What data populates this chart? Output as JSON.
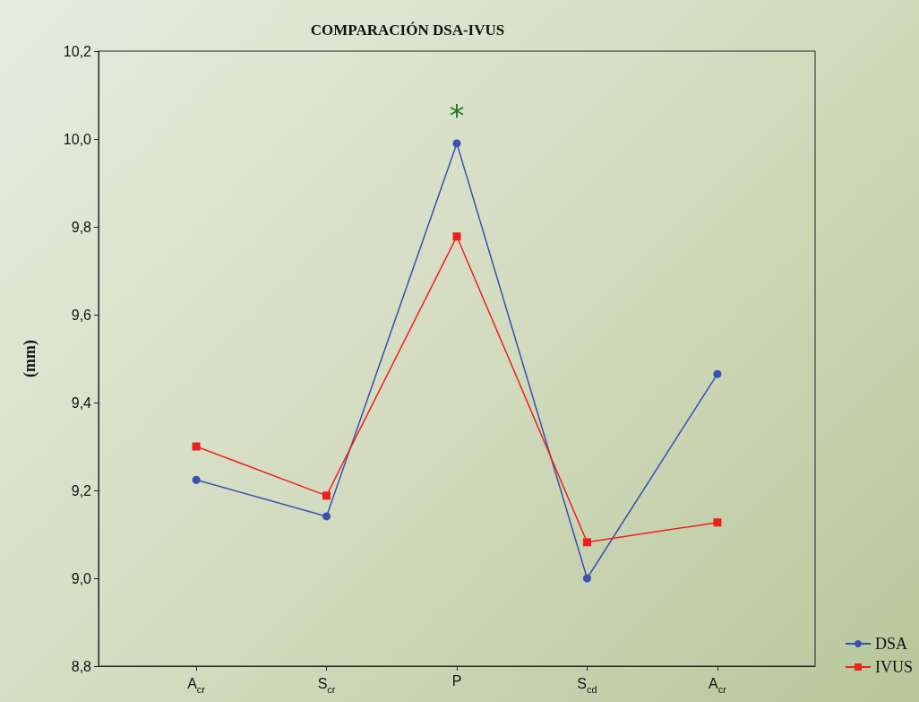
{
  "chart_data": {
    "type": "line",
    "title": "COMPARACIÓN DSA-IVUS",
    "ylabel": "(mm)",
    "categories": [
      "A$_{cr}$",
      "S$_{cr}$",
      "P",
      "S$_{cd}$",
      "A$_{cr}$"
    ],
    "series": [
      {
        "name": "DSA",
        "color": "#3b4fb0",
        "marker": "circle",
        "values": [
          9.224,
          9.141,
          9.99,
          9.0,
          9.465
        ]
      },
      {
        "name": "IVUS",
        "color": "#ee2020",
        "marker": "square",
        "values": [
          9.3,
          9.188,
          9.778,
          9.082,
          9.127
        ]
      }
    ],
    "ylim": [
      8.8,
      10.2
    ],
    "yticks": [
      {
        "value": 8.8,
        "label": "8,8"
      },
      {
        "value": 9.0,
        "label": "9,0"
      },
      {
        "value": 9.2,
        "label": "9,2"
      },
      {
        "value": 9.4,
        "label": "9,4"
      },
      {
        "value": 9.6,
        "label": "9,6"
      },
      {
        "value": 9.8,
        "label": "9,8"
      },
      {
        "value": 10.0,
        "label": "10,0"
      },
      {
        "value": 10.2,
        "label": "10,2"
      }
    ],
    "annotations": [
      "*"
    ],
    "grid": false,
    "legend": "bottom right",
    "line_style": "solid"
  }
}
